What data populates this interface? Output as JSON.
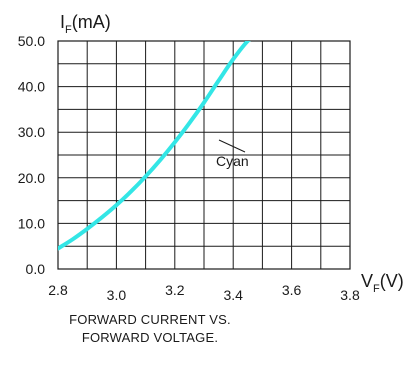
{
  "chart_data": {
    "type": "line",
    "title": "FORWARD CURRENT VS. FORWARD VOLTAGE.",
    "caption_lines": [
      "FORWARD CURRENT VS.",
      "FORWARD VOLTAGE."
    ],
    "ylabel": {
      "main": "I",
      "sub": "F",
      "unit": "(mA)"
    },
    "xlabel": {
      "main": "V",
      "sub": "F",
      "unit": "(V)"
    },
    "xlim": [
      2.8,
      3.8
    ],
    "ylim": [
      0,
      50
    ],
    "grid": true,
    "x_ticks": [
      "2.8",
      "3.0",
      "3.2",
      "3.4",
      "3.6",
      "3.8"
    ],
    "y_ticks": [
      "0.0",
      "10.0",
      "20.0",
      "30.0",
      "40.0",
      "50.0"
    ],
    "series": [
      {
        "name": "Cyan",
        "color": "#33e6e6",
        "x": [
          2.8,
          2.85,
          2.9,
          2.95,
          3.0,
          3.05,
          3.1,
          3.15,
          3.2,
          3.25,
          3.3,
          3.35,
          3.4,
          3.45,
          3.48
        ],
        "y": [
          4.5,
          6.5,
          8.8,
          11.3,
          14.0,
          17.0,
          20.3,
          23.9,
          27.8,
          32.0,
          36.5,
          41.3,
          46.0,
          50.0,
          51.0
        ]
      }
    ],
    "annotations": [
      {
        "text": "Cyan",
        "series": "Cyan"
      }
    ]
  }
}
